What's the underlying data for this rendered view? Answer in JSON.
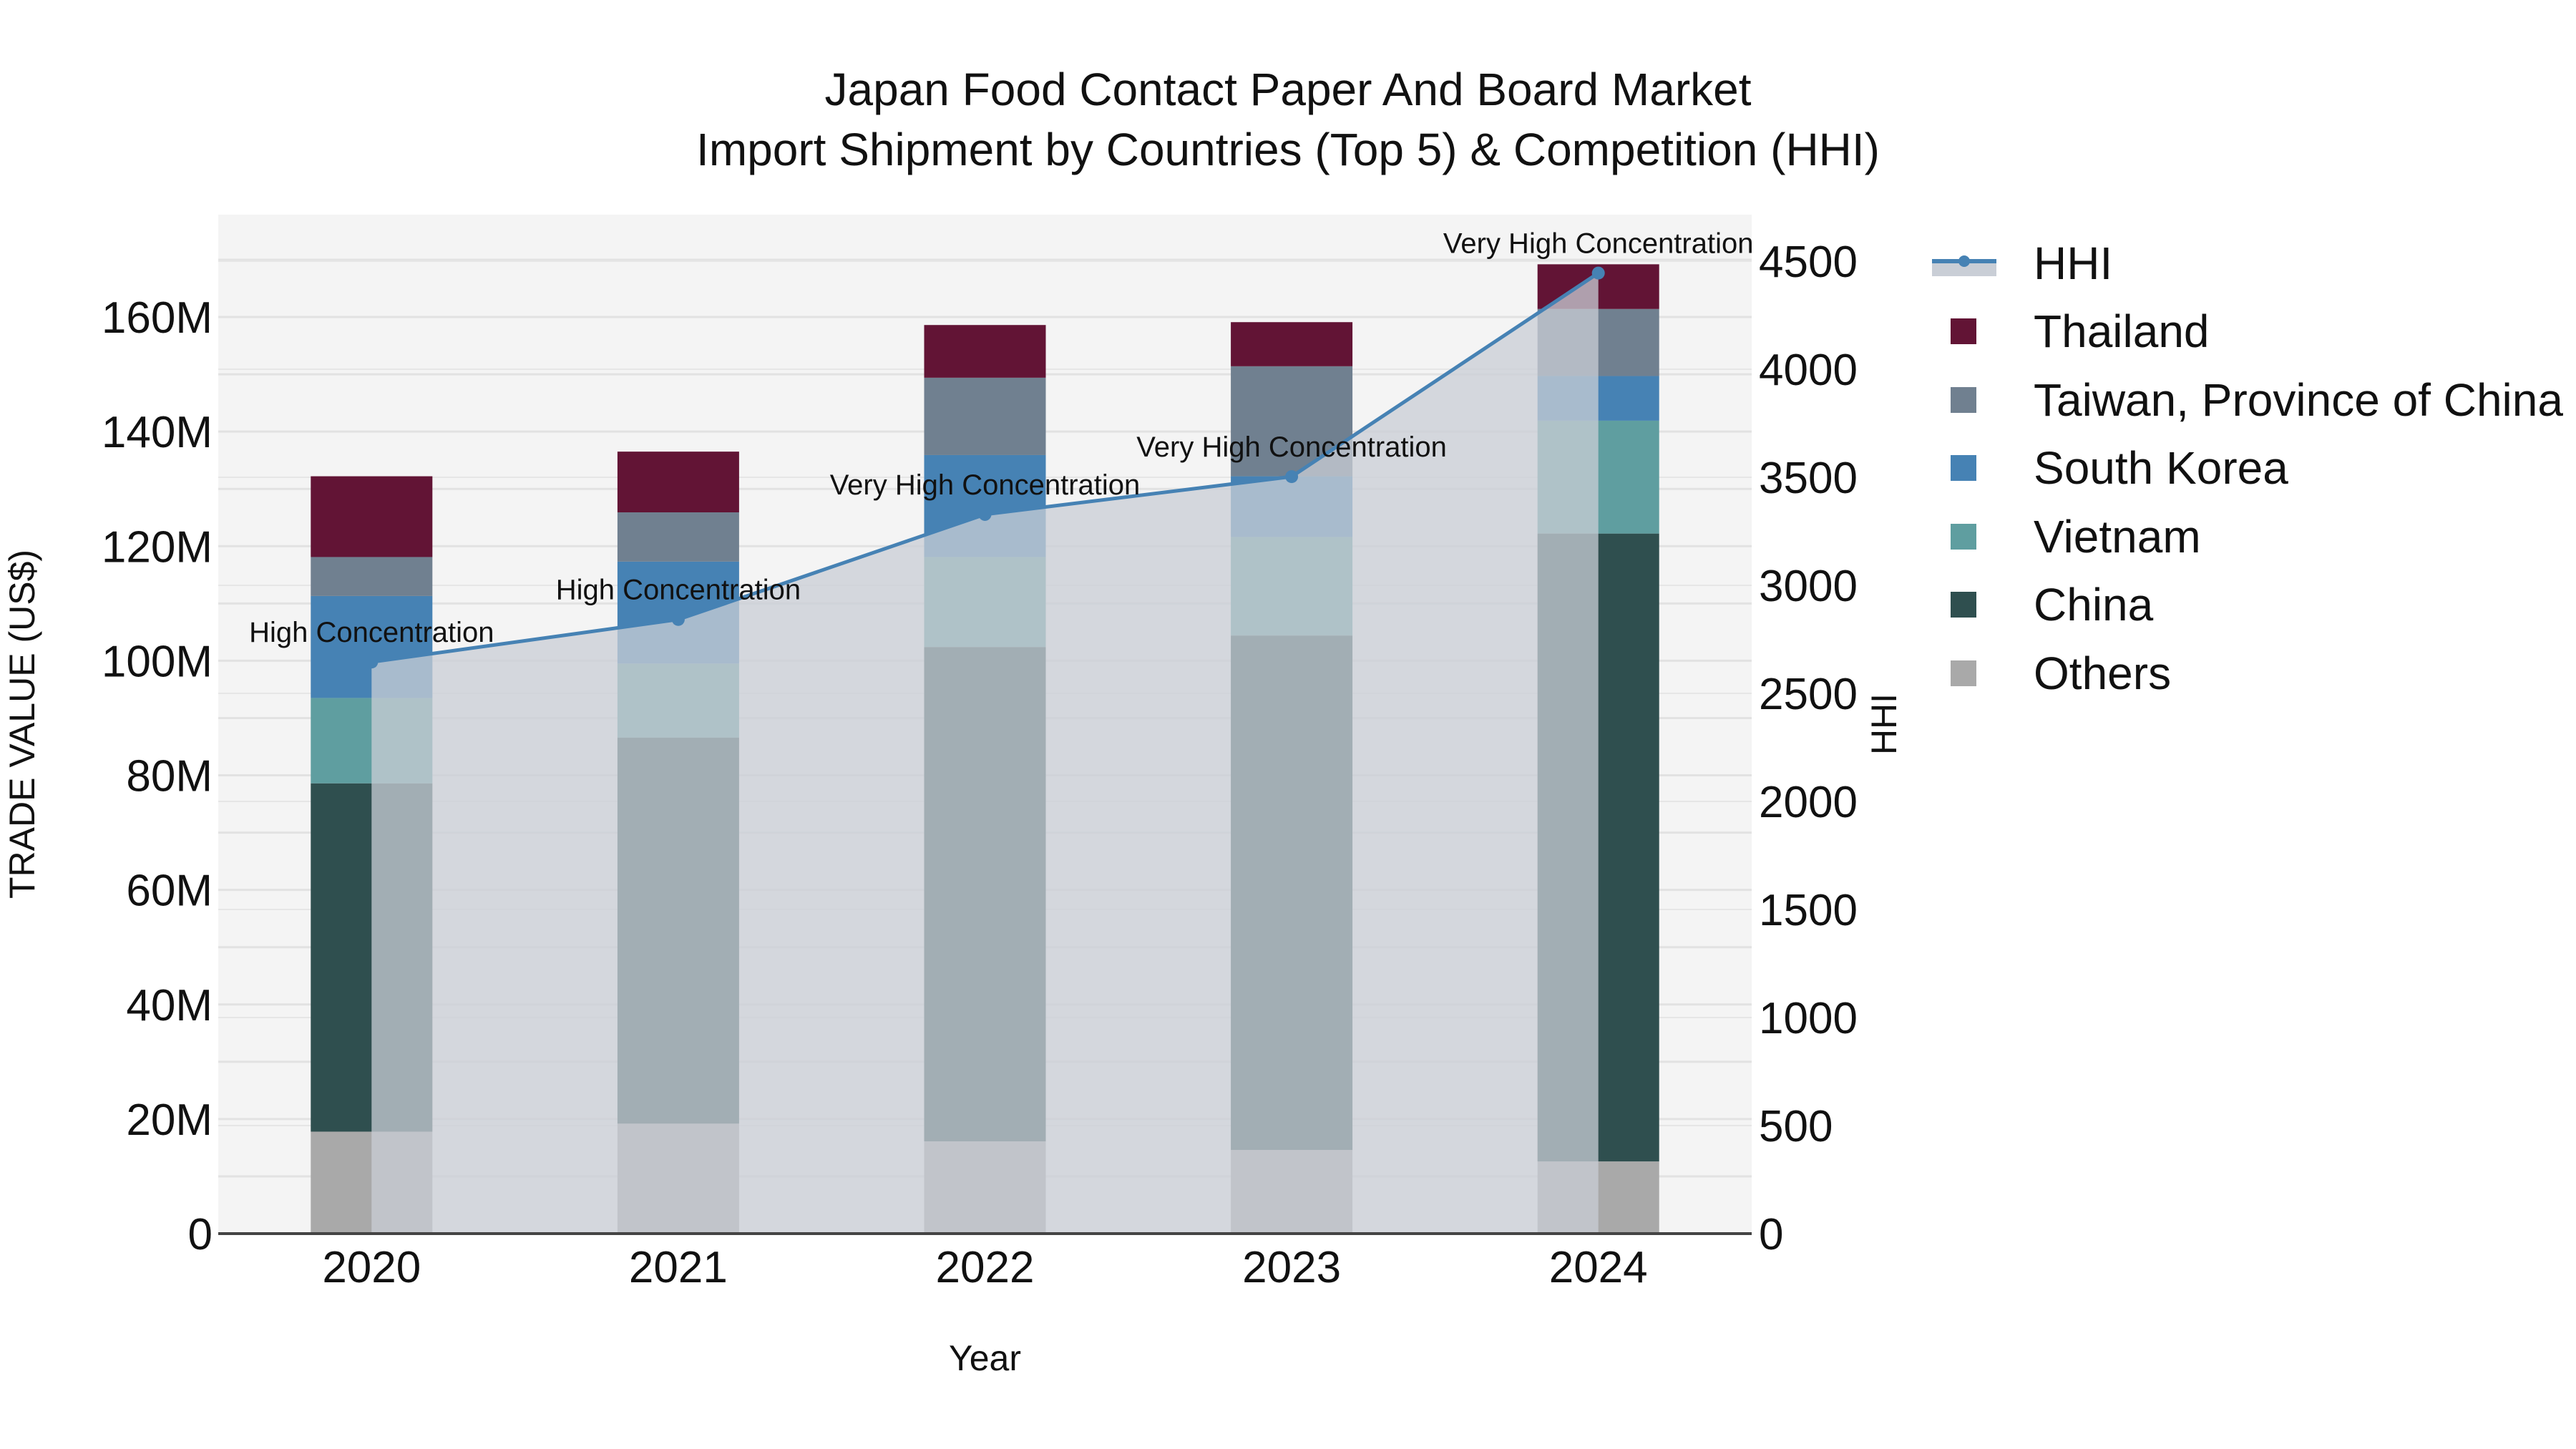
{
  "header": {
    "title_line1": "Japan Food Contact Paper And Board Market",
    "title_line2": "Import Shipment by Countries (Top 5) & Competition (HHI)"
  },
  "legend": {
    "items": [
      {
        "label": "HHI",
        "type": "line",
        "color": "#4682b4"
      },
      {
        "label": "Thailand",
        "type": "bar",
        "color": "#621435"
      },
      {
        "label": "Taiwan, Province of China",
        "type": "bar",
        "color": "#708090"
      },
      {
        "label": "South Korea",
        "type": "bar",
        "color": "#4682b4"
      },
      {
        "label": "Vietnam",
        "type": "bar",
        "color": "#5f9ea0"
      },
      {
        "label": "China",
        "type": "bar",
        "color": "#2f4f4f"
      },
      {
        "label": "Others",
        "type": "bar",
        "color": "#a9a9a9"
      }
    ]
  },
  "chart_data": {
    "type": "bar",
    "stacked": true,
    "title": "Japan Food Contact Paper And Board Market — Import Shipment by Countries (Top 5) & Competition (HHI)",
    "xlabel": "Year",
    "ylabel": "TRADE VALUE (US$)",
    "y2label": "HHI",
    "categories": [
      "2020",
      "2021",
      "2022",
      "2023",
      "2024"
    ],
    "ylim": [
      0,
      175000000
    ],
    "y2lim": [
      0,
      4700
    ],
    "yticks": [
      "0",
      "20M",
      "40M",
      "60M",
      "80M",
      "100M",
      "120M",
      "140M",
      "160M"
    ],
    "y2ticks": [
      "0",
      "500",
      "1000",
      "1500",
      "2000",
      "2500",
      "3000",
      "3500",
      "4000",
      "4500"
    ],
    "series": [
      {
        "name": "Others",
        "color": "#a9a9a9",
        "values": [
          17800000,
          19200000,
          16100000,
          14600000,
          12600000
        ]
      },
      {
        "name": "China",
        "color": "#2f4f4f",
        "values": [
          60800000,
          67400000,
          86300000,
          89800000,
          109600000
        ]
      },
      {
        "name": "Vietnam",
        "color": "#5f9ea0",
        "values": [
          14900000,
          12900000,
          15700000,
          17200000,
          19700000
        ]
      },
      {
        "name": "South Korea",
        "color": "#4682b4",
        "values": [
          17800000,
          17800000,
          17800000,
          10600000,
          7800000
        ]
      },
      {
        "name": "Taiwan, Province of China",
        "color": "#708090",
        "values": [
          6800000,
          8600000,
          13500000,
          19200000,
          11700000
        ]
      },
      {
        "name": "Thailand",
        "color": "#621435",
        "values": [
          14100000,
          10600000,
          9200000,
          7700000,
          7800000
        ]
      }
    ],
    "line_series": {
      "name": "HHI",
      "axis": "y2",
      "color": "#4682b4",
      "fill": "#c9ced6",
      "values": [
        2645,
        2842,
        3328,
        3503,
        4445
      ],
      "annotations": [
        "High Concentration",
        "High Concentration",
        "Very High Concentration",
        "Very High Concentration",
        "Very High Concentration"
      ]
    },
    "grid": true,
    "legend_position": "right"
  }
}
